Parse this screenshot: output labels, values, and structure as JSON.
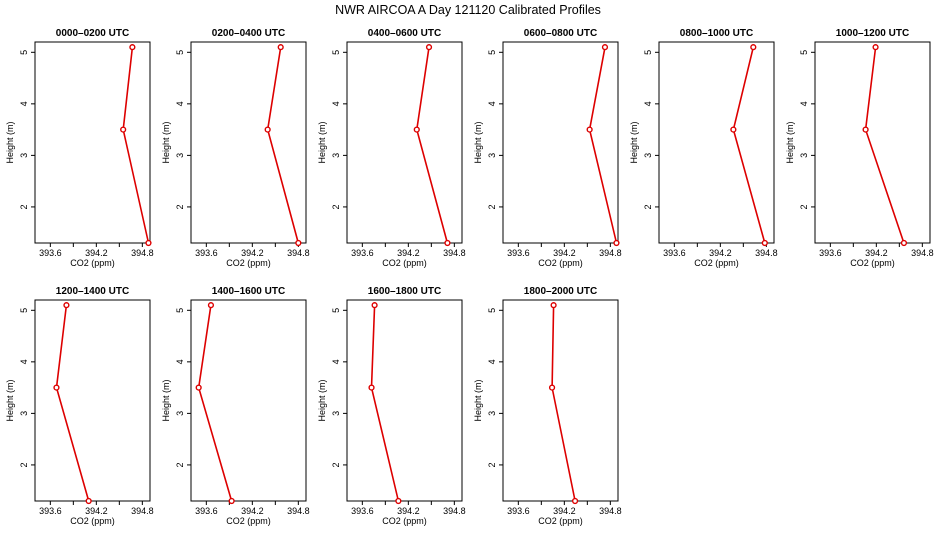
{
  "title": "NWR AIRCOA A  Day 121120  Calibrated Profiles",
  "colors": {
    "series": "#dd0000",
    "axis": "#000000"
  },
  "chart_data": {
    "type": "line",
    "xlabel": "CO2 (ppm)",
    "ylabel": "Height (m)",
    "xlim": [
      393.4,
      394.9
    ],
    "ylim": [
      1.3,
      5.2
    ],
    "xticks": [
      "393.6",
      "394.2",
      "394.8"
    ],
    "xtick_values": [
      393.6,
      394.2,
      394.8
    ],
    "yticks": [
      "2",
      "3",
      "4",
      "5"
    ],
    "ytick_values": [
      2,
      3,
      4,
      5
    ],
    "heights": [
      5.1,
      3.5,
      1.3
    ],
    "panels": [
      {
        "title": "0000–0200 UTC",
        "co2": [
          394.67,
          394.55,
          394.88
        ]
      },
      {
        "title": "0200–0400 UTC",
        "co2": [
          394.57,
          394.4,
          394.8
        ]
      },
      {
        "title": "0400–0600 UTC",
        "co2": [
          394.47,
          394.31,
          394.71
        ]
      },
      {
        "title": "0600–0800 UTC",
        "co2": [
          394.73,
          394.53,
          394.88
        ]
      },
      {
        "title": "0800–1000 UTC",
        "co2": [
          394.63,
          394.37,
          394.78
        ]
      },
      {
        "title": "1000–1200 UTC",
        "co2": [
          394.19,
          394.06,
          394.56
        ]
      },
      {
        "title": "1200–1400 UTC",
        "co2": [
          393.81,
          393.68,
          394.1
        ]
      },
      {
        "title": "1400–1600 UTC",
        "co2": [
          393.66,
          393.5,
          393.93
        ]
      },
      {
        "title": "1600–1800 UTC",
        "co2": [
          393.76,
          393.72,
          394.07
        ]
      },
      {
        "title": "1800–2000 UTC",
        "co2": [
          394.06,
          394.04,
          394.34
        ]
      }
    ]
  }
}
